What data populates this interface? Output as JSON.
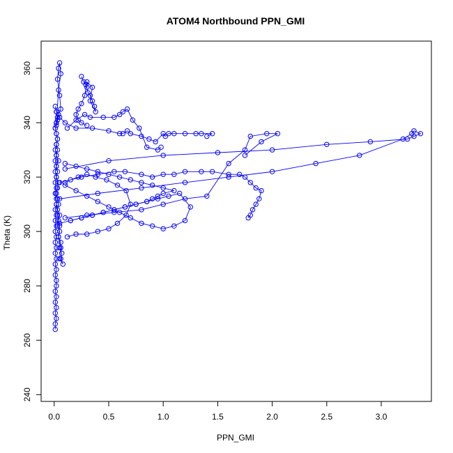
{
  "chart_data": {
    "type": "line",
    "title": "ATOM4 Northbound PPN_GMI",
    "xlabel": "PPN_GMI",
    "ylabel": "Theta (K)",
    "xlim": [
      -0.12,
      3.46
    ],
    "ylim": [
      237.5,
      370
    ],
    "x_ticks": [
      0.0,
      0.5,
      1.0,
      1.5,
      2.0,
      2.5,
      3.0
    ],
    "x_tick_labels": [
      "0.0",
      "0.5",
      "1.0",
      "1.5",
      "2.0",
      "2.5",
      "3.0"
    ],
    "y_ticks": [
      240,
      260,
      280,
      300,
      320,
      340,
      360
    ],
    "y_tick_labels": [
      "240",
      "260",
      "280",
      "300",
      "320",
      "340",
      "360"
    ],
    "series_color": "#0000ff",
    "marker": "open-circle",
    "grid": false,
    "legend": "none",
    "series": [
      {
        "x": [
          0.01,
          0.01,
          0.02,
          0.01,
          0.02,
          0.01,
          0.02,
          0.01,
          0.02,
          0.02,
          0.01,
          0.02,
          0.01,
          0.02,
          0.01,
          0.02,
          0.01,
          0.02,
          0.01,
          0.02,
          0.01,
          0.02,
          0.01,
          0.02,
          0.02,
          0.01,
          0.02,
          0.01,
          0.02,
          0.01,
          0.02,
          0.01,
          0.02,
          0.01,
          0.02,
          0.03,
          0.02,
          0.01,
          0.02,
          0.03,
          0.02,
          0.01,
          0.02,
          0.03,
          0.02,
          0.01,
          0.02,
          0.03,
          0.02,
          0.03,
          0.02,
          0.04,
          0.02,
          0.03,
          0.02,
          0.04,
          0.03,
          0.02,
          0.03,
          0.04,
          0.03,
          0.05,
          0.04,
          0.03,
          0.05,
          0.04,
          0.06,
          0.05,
          0.07,
          0.06,
          0.08,
          0.05,
          0.06,
          0.04,
          0.05,
          0.03,
          0.02
        ],
        "y": [
          264,
          266,
          268,
          270,
          272,
          274,
          276,
          278,
          280,
          282,
          284,
          286,
          288,
          290,
          292,
          294,
          296,
          298,
          300,
          302,
          304,
          306,
          308,
          310,
          312,
          314,
          316,
          318,
          320,
          322,
          324,
          326,
          328,
          330,
          332,
          334,
          336,
          338,
          340,
          342,
          344,
          346,
          344,
          342,
          340,
          338,
          336,
          334,
          332,
          330,
          328,
          326,
          324,
          322,
          320,
          318,
          316,
          314,
          312,
          310,
          308,
          306,
          304,
          302,
          300,
          298,
          296,
          294,
          292,
          290,
          288,
          290,
          294,
          298,
          302,
          306,
          310
        ]
      },
      {
        "x": [
          0.02,
          0.04,
          0.06,
          0.05,
          0.04,
          0.03,
          0.05,
          0.06,
          0.04,
          0.03,
          0.02
        ],
        "y": [
          340,
          352,
          358,
          362,
          360,
          356,
          350,
          345,
          343,
          341,
          339
        ]
      },
      {
        "x": [
          0.25,
          0.27,
          0.29,
          0.3,
          0.31,
          0.33,
          0.35,
          0.37,
          0.38,
          0.33,
          0.35,
          0.3,
          0.28,
          0.25,
          0.22,
          0.2,
          0.22,
          0.25,
          0.3
        ],
        "y": [
          357,
          355,
          354,
          353,
          351,
          350,
          348,
          346,
          344,
          348,
          353,
          355,
          350,
          347,
          345,
          343,
          341,
          340,
          339
        ]
      },
      {
        "x": [
          0.05,
          0.1,
          0.2,
          0.35,
          0.5,
          0.6,
          0.63,
          0.67,
          0.7,
          0.8,
          0.87,
          0.93,
          1.0,
          1.02,
          1.05,
          1.1,
          1.2,
          1.3,
          1.35,
          1.45,
          1.4
        ],
        "y": [
          342,
          340,
          338,
          338,
          337,
          336,
          336,
          337,
          336,
          335,
          334,
          333,
          336,
          335,
          336,
          336,
          336,
          336,
          336,
          336,
          335
        ]
      },
      {
        "x": [
          0.05,
          0.25,
          0.4,
          0.55,
          0.65,
          0.8,
          0.9,
          1.0,
          1.1,
          1.2,
          1.35,
          1.45,
          1.6,
          1.7,
          1.75,
          1.8,
          1.85,
          1.9,
          1.88,
          1.85,
          1.82,
          1.8,
          1.78
        ],
        "y": [
          318,
          320,
          321,
          322,
          322,
          321,
          320,
          321,
          321,
          322,
          322,
          322,
          321,
          321,
          320,
          318,
          316,
          315,
          312,
          310,
          308,
          306,
          305
        ]
      },
      {
        "x": [
          0.1,
          0.3,
          0.55,
          0.8,
          1.0,
          1.2,
          1.4,
          1.6,
          1.75,
          1.8,
          1.95,
          2.05,
          1.9,
          1.75
        ],
        "y": [
          305,
          306,
          307,
          308,
          310,
          312,
          313,
          325,
          330,
          335,
          336,
          336,
          333,
          328
        ]
      },
      {
        "x": [
          0.05,
          0.4,
          0.8,
          1.2,
          1.6,
          2.0,
          2.4,
          2.8,
          3.2,
          3.28,
          3.3,
          3.36,
          3.3,
          3.24,
          2.9,
          2.5,
          2.0,
          1.5,
          1.0,
          0.5,
          0.1
        ],
        "y": [
          312,
          314,
          316,
          318,
          320,
          322,
          325,
          328,
          334,
          336,
          337,
          336,
          335,
          334,
          333,
          332,
          330,
          329,
          328,
          326,
          323
        ]
      },
      {
        "x": [
          0.05,
          0.15,
          0.25,
          0.35,
          0.45,
          0.55,
          0.65,
          0.75,
          0.85,
          0.95,
          1.05,
          1.15,
          1.25,
          1.2,
          1.1,
          1.0,
          0.9,
          0.8,
          0.7,
          0.6,
          0.5,
          0.4,
          0.3,
          0.2,
          0.1
        ],
        "y": [
          303,
          304,
          305,
          306,
          307,
          308,
          309,
          310,
          311,
          312,
          313,
          314,
          309,
          304,
          302,
          301,
          302,
          303,
          305,
          307,
          309,
          311,
          313,
          315,
          317
        ]
      },
      {
        "x": [
          0.1,
          0.2,
          0.3,
          0.4,
          0.5,
          0.6,
          0.7,
          0.8,
          0.9,
          1.0,
          1.1,
          1.0,
          0.95,
          0.9,
          0.85,
          0.75,
          0.65,
          0.55,
          0.45,
          0.35,
          0.25,
          0.15
        ],
        "y": [
          325,
          324,
          323,
          322,
          321,
          320,
          319,
          318,
          317,
          316,
          315,
          314,
          313,
          312,
          311,
          310,
          309,
          308,
          307,
          306,
          305,
          304
        ]
      },
      {
        "x": [
          0.12,
          0.2,
          0.28,
          0.33,
          0.45,
          0.55,
          0.6,
          0.63,
          0.67,
          0.72,
          0.78,
          0.85,
          0.95,
          0.98
        ],
        "y": [
          338,
          341,
          343,
          342,
          342,
          342,
          343,
          344,
          345,
          341,
          338,
          331,
          330,
          331
        ]
      },
      {
        "x": [
          0.1,
          0.15,
          0.22,
          0.3,
          0.38,
          0.48,
          0.58,
          0.66,
          0.7,
          0.66,
          0.58,
          0.5,
          0.4,
          0.3,
          0.2,
          0.12
        ],
        "y": [
          318,
          319,
          320,
          321,
          320,
          319,
          317,
          315,
          310,
          306,
          303,
          301,
          300,
          299,
          299,
          298
        ]
      }
    ]
  }
}
